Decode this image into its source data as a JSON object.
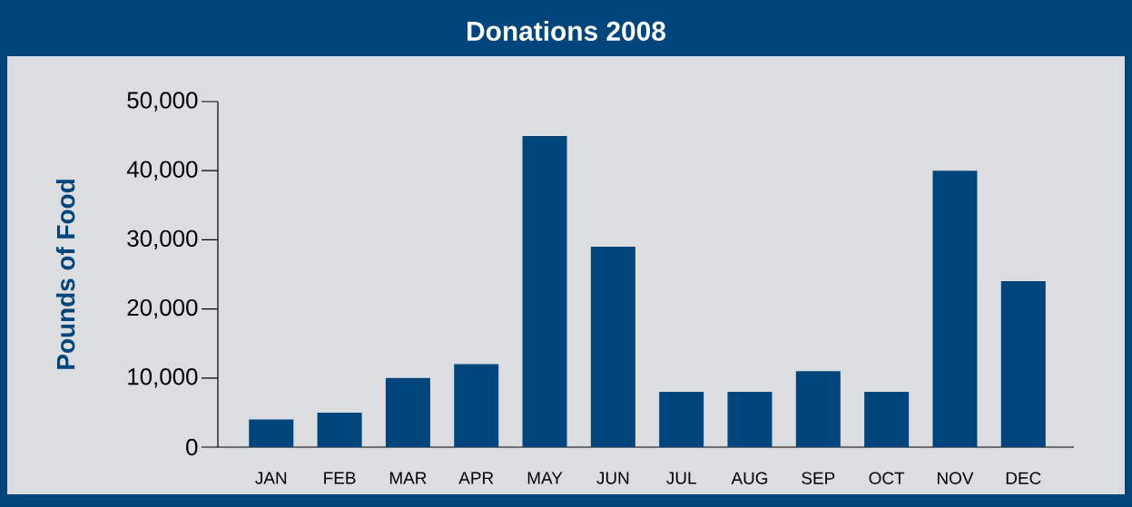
{
  "chart_data": {
    "type": "bar",
    "title": "Donations 2008",
    "ylabel": "Pounds of Food",
    "categories": [
      "JAN",
      "FEB",
      "MAR",
      "APR",
      "MAY",
      "JUN",
      "JUL",
      "AUG",
      "SEP",
      "OCT",
      "NOV",
      "DEC"
    ],
    "values": [
      4000,
      5000,
      10000,
      12000,
      45000,
      29000,
      8000,
      8000,
      11000,
      8000,
      40000,
      24000
    ],
    "color": "#00457c",
    "ylim": [
      0,
      50000
    ],
    "yticks": [
      0,
      {
        "value": 10000,
        "label": "10,000"
      },
      {
        "value": 20000,
        "label": "20,000"
      },
      {
        "value": 30000,
        "label": "30,000"
      },
      {
        "value": 40000,
        "label": "40,000"
      },
      {
        "value": 50000,
        "label": "50,000"
      }
    ]
  }
}
